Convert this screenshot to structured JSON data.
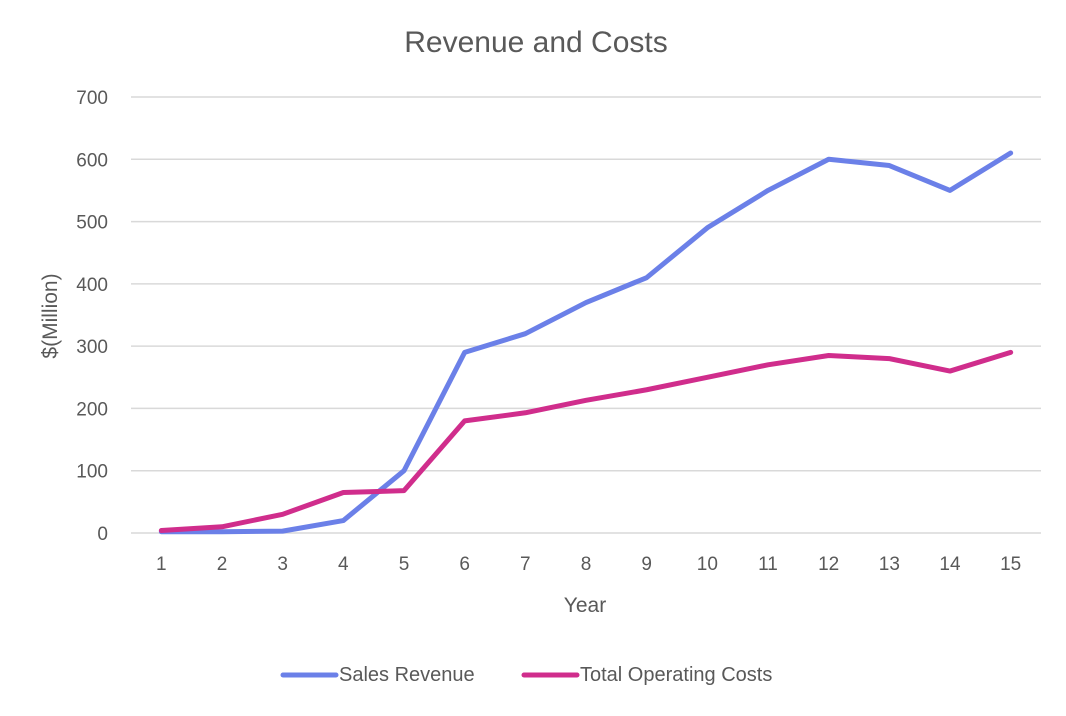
{
  "chart_data": {
    "type": "line",
    "title": "Revenue and Costs",
    "xlabel": "Year",
    "ylabel": "$(Million)",
    "x": [
      1,
      2,
      3,
      4,
      5,
      6,
      7,
      8,
      9,
      10,
      11,
      12,
      13,
      14,
      15
    ],
    "x_tick_labels": [
      "1",
      "2",
      "3",
      "4",
      "5",
      "6",
      "7",
      "8",
      "9",
      "10",
      "11",
      "12",
      "13",
      "14",
      "15"
    ],
    "y_tick_labels": [
      "0",
      "100",
      "200",
      "300",
      "400",
      "500",
      "600",
      "700"
    ],
    "y_ticks": [
      0,
      100,
      200,
      300,
      400,
      500,
      600,
      700
    ],
    "ylim": [
      0,
      700
    ],
    "grid": true,
    "legend_position": "bottom",
    "series": [
      {
        "name": "Sales Revenue",
        "color": "#6b80e8",
        "values": [
          2,
          2,
          3,
          20,
          100,
          290,
          320,
          370,
          410,
          490,
          550,
          600,
          590,
          550,
          610
        ]
      },
      {
        "name": "Total Operating Costs",
        "color": "#d02d8c",
        "values": [
          4,
          10,
          30,
          65,
          68,
          180,
          193,
          213,
          230,
          250,
          270,
          285,
          280,
          260,
          290
        ]
      }
    ]
  }
}
